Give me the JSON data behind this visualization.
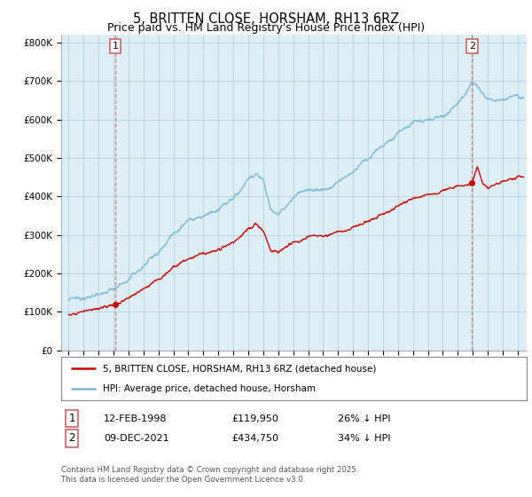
{
  "title": "5, BRITTEN CLOSE, HORSHAM, RH13 6RZ",
  "subtitle": "Price paid vs. HM Land Registry's House Price Index (HPI)",
  "title_fontsize": 10.5,
  "subtitle_fontsize": 9,
  "ylabel_ticks": [
    "£0",
    "£100K",
    "£200K",
    "£300K",
    "£400K",
    "£500K",
    "£600K",
    "£700K",
    "£800K"
  ],
  "ytick_values": [
    0,
    100000,
    200000,
    300000,
    400000,
    500000,
    600000,
    700000,
    800000
  ],
  "ylim": [
    0,
    820000
  ],
  "xlim_start": 1994.5,
  "xlim_end": 2025.6,
  "hpi_color": "#7ab8d9",
  "hpi_bg_color": "#ddeef7",
  "price_color": "#cc0000",
  "marker1_date": 1998.12,
  "marker1_price": 119950,
  "marker1_label": "1",
  "marker2_date": 2021.95,
  "marker2_price": 434750,
  "marker2_label": "2",
  "legend_line1": "5, BRITTEN CLOSE, HORSHAM, RH13 6RZ (detached house)",
  "legend_line2": "HPI: Average price, detached house, Horsham",
  "table_row1": [
    "1",
    "12-FEB-1998",
    "£119,950",
    "26% ↓ HPI"
  ],
  "table_row2": [
    "2",
    "09-DEC-2021",
    "£434,750",
    "34% ↓ HPI"
  ],
  "footnote": "Contains HM Land Registry data © Crown copyright and database right 2025.\nThis data is licensed under the Open Government Licence v3.0.",
  "bg_color": "#ffffff",
  "chart_bg_color": "#ddeef7",
  "grid_color": "#aaccdd",
  "dashed_line_color": "#cc6666"
}
